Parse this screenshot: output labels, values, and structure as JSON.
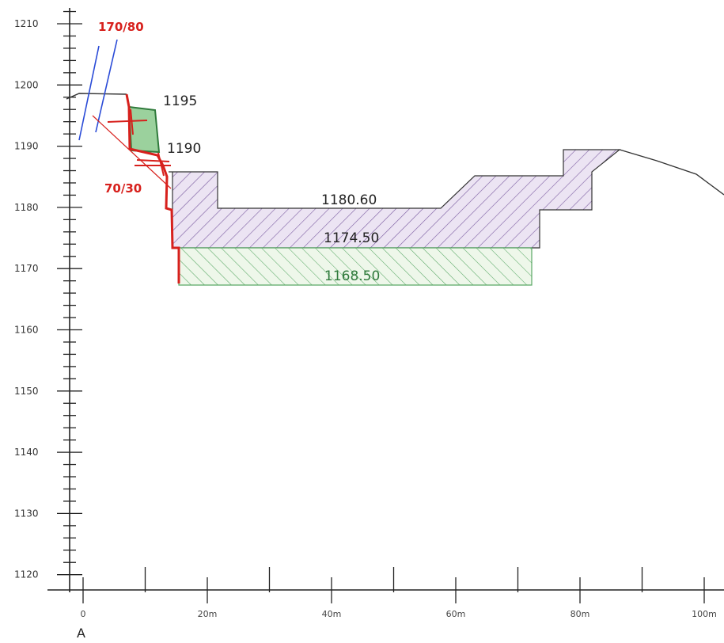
{
  "elevation_axis": {
    "ticks": [
      1210,
      1200,
      1190,
      1180,
      1170,
      1160,
      1150,
      1140,
      1130,
      1120
    ],
    "range": [
      1120,
      1212
    ]
  },
  "distance_axis": {
    "ticks": [
      "0",
      "20m",
      "40m",
      "60m",
      "80m",
      "100m"
    ],
    "range": [
      0,
      100
    ]
  },
  "section_end_label": "A",
  "annotations": {
    "joint_set_1": "170/80",
    "joint_set_2": "70/30",
    "bench_1195": "1195",
    "bench_1190": "1190",
    "level_upper": "1180.60",
    "level_middle": "1174.50",
    "level_lower": "1168.50"
  },
  "colors": {
    "axis": "#222222",
    "ground_line": "#333333",
    "excavated_face": "#d7201c",
    "joint_trace": "#2a4bd7",
    "purple_hatch": "#7a5ba0",
    "purple_fill": "#ece4f3",
    "green_hatch": "#59a865",
    "green_fill": "#eef7ea",
    "green_block": "#9bd19d"
  },
  "legend": "none",
  "grid": false
}
